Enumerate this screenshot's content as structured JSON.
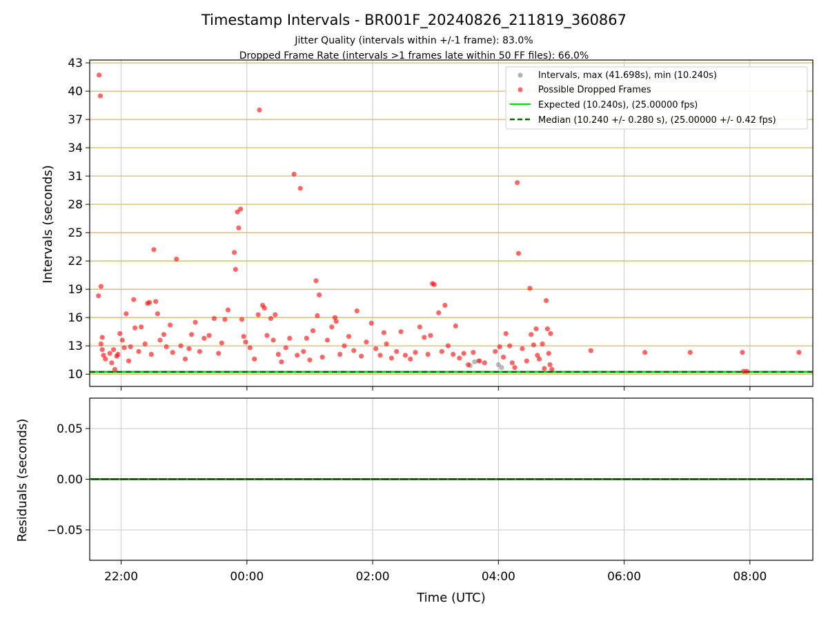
{
  "figure": {
    "title": "Timestamp Intervals - BR001F_20240826_211819_360867",
    "subtitle_1": "Jitter Quality (intervals within +/-1 frame): 83.0%",
    "subtitle_2": "Dropped Frame Rate (intervals >1 frames late within 50 FF files): 66.0%"
  },
  "colors": {
    "intervals": "#808080",
    "dropped": "#ff0000",
    "expected": "#00e000",
    "median": "#006400",
    "hband": "#d4b86a",
    "grid": "#c8c8c8"
  },
  "chart_data": [
    {
      "type": "scatter",
      "xlabel": "Time (UTC)",
      "ylabel": "Intervals (seconds)",
      "x_unit": "hours since 00:00 UTC",
      "xlim": [
        -2.5,
        9.0
      ],
      "ylim": [
        8.7,
        43.3
      ],
      "x_ticks": [
        {
          "value": -2,
          "label": "22:00"
        },
        {
          "value": 0,
          "label": "00:00"
        },
        {
          "value": 2,
          "label": "02:00"
        },
        {
          "value": 4,
          "label": "04:00"
        },
        {
          "value": 6,
          "label": "06:00"
        },
        {
          "value": 8,
          "label": "08:00"
        }
      ],
      "y_ticks": [
        10,
        13,
        16,
        19,
        22,
        25,
        28,
        31,
        34,
        37,
        40,
        43
      ],
      "horizontal_bands": [
        10,
        13,
        16,
        19,
        22,
        25,
        28,
        31,
        34,
        37,
        40,
        43
      ],
      "legend": {
        "position": "upper right",
        "entries": [
          {
            "label": "Intervals, max (41.698s), min (10.240s)",
            "kind": "dot",
            "color": "#808080"
          },
          {
            "label": "Possible Dropped Frames",
            "kind": "dot",
            "color": "#ff0000"
          },
          {
            "label": "Expected (10.240s), (25.00000 fps)",
            "kind": "line",
            "color": "#00e000"
          },
          {
            "label": "Median (10.240 +/- 0.280 s), (25.00000 +/- 0.42 fps)",
            "kind": "dashed",
            "color": "#006400"
          }
        ]
      },
      "lines": [
        {
          "name": "Expected",
          "y": 10.24
        },
        {
          "name": "Median",
          "y": 10.24
        }
      ],
      "series": [
        {
          "name": "Intervals",
          "points": [
            [
              3.62,
              11.3
            ],
            [
              3.68,
              11.4
            ],
            [
              4.0,
              11.0
            ],
            [
              3.55,
              10.9
            ],
            [
              4.05,
              10.7
            ]
          ]
        },
        {
          "name": "Possible Dropped Frames",
          "points": [
            [
              -2.35,
              41.7
            ],
            [
              -2.33,
              39.5
            ],
            [
              -2.36,
              18.3
            ],
            [
              -2.32,
              19.3
            ],
            [
              -2.3,
              13.9
            ],
            [
              -2.32,
              13.2
            ],
            [
              -2.3,
              12.6
            ],
            [
              -2.28,
              12.0
            ],
            [
              -2.25,
              11.6
            ],
            [
              -2.18,
              12.2
            ],
            [
              -2.15,
              11.2
            ],
            [
              -2.12,
              12.6
            ],
            [
              -2.1,
              10.5
            ],
            [
              -2.07,
              11.9
            ],
            [
              -2.05,
              12.1
            ],
            [
              -2.02,
              14.3
            ],
            [
              -1.98,
              13.6
            ],
            [
              -1.95,
              12.8
            ],
            [
              -1.92,
              16.4
            ],
            [
              -1.88,
              11.4
            ],
            [
              -1.85,
              12.9
            ],
            [
              -1.8,
              17.9
            ],
            [
              -1.78,
              14.9
            ],
            [
              -1.72,
              12.4
            ],
            [
              -1.68,
              15.0
            ],
            [
              -1.62,
              13.2
            ],
            [
              -1.58,
              17.5
            ],
            [
              -1.55,
              17.6
            ],
            [
              -1.52,
              12.1
            ],
            [
              -1.48,
              23.2
            ],
            [
              -1.45,
              17.7
            ],
            [
              -1.42,
              16.4
            ],
            [
              -1.38,
              13.6
            ],
            [
              -1.32,
              14.2
            ],
            [
              -1.28,
              12.9
            ],
            [
              -1.22,
              15.2
            ],
            [
              -1.18,
              12.3
            ],
            [
              -1.12,
              22.2
            ],
            [
              -1.05,
              13.0
            ],
            [
              -0.98,
              11.6
            ],
            [
              -0.92,
              12.7
            ],
            [
              -0.88,
              14.2
            ],
            [
              -0.82,
              15.5
            ],
            [
              -0.75,
              12.4
            ],
            [
              -0.68,
              13.8
            ],
            [
              -0.6,
              14.1
            ],
            [
              -0.52,
              15.9
            ],
            [
              -0.45,
              12.2
            ],
            [
              -0.4,
              13.3
            ],
            [
              -0.35,
              15.8
            ],
            [
              -0.3,
              16.8
            ],
            [
              -0.2,
              22.9
            ],
            [
              -0.18,
              21.1
            ],
            [
              -0.15,
              27.2
            ],
            [
              -0.13,
              25.5
            ],
            [
              -0.1,
              27.5
            ],
            [
              -0.08,
              15.8
            ],
            [
              -0.05,
              14.0
            ],
            [
              -0.02,
              13.4
            ],
            [
              0.05,
              12.8
            ],
            [
              0.12,
              11.6
            ],
            [
              0.18,
              16.3
            ],
            [
              0.2,
              38.0
            ],
            [
              0.25,
              17.3
            ],
            [
              0.28,
              17.0
            ],
            [
              0.32,
              14.1
            ],
            [
              0.38,
              15.9
            ],
            [
              0.42,
              13.6
            ],
            [
              0.45,
              16.3
            ],
            [
              0.5,
              12.1
            ],
            [
              0.55,
              11.3
            ],
            [
              0.62,
              12.8
            ],
            [
              0.68,
              13.8
            ],
            [
              0.75,
              31.2
            ],
            [
              0.8,
              12.0
            ],
            [
              0.85,
              29.7
            ],
            [
              0.9,
              12.4
            ],
            [
              0.95,
              13.8
            ],
            [
              1.0,
              11.5
            ],
            [
              1.05,
              14.6
            ],
            [
              1.1,
              19.9
            ],
            [
              1.12,
              16.2
            ],
            [
              1.15,
              18.4
            ],
            [
              1.2,
              11.8
            ],
            [
              1.28,
              13.6
            ],
            [
              1.35,
              15.0
            ],
            [
              1.4,
              16.0
            ],
            [
              1.42,
              15.6
            ],
            [
              1.48,
              12.1
            ],
            [
              1.55,
              13.0
            ],
            [
              1.62,
              14.0
            ],
            [
              1.7,
              12.5
            ],
            [
              1.75,
              16.7
            ],
            [
              1.82,
              11.9
            ],
            [
              1.9,
              13.4
            ],
            [
              1.98,
              15.4
            ],
            [
              2.05,
              12.7
            ],
            [
              2.12,
              12.0
            ],
            [
              2.18,
              14.4
            ],
            [
              2.22,
              13.2
            ],
            [
              2.3,
              11.7
            ],
            [
              2.38,
              12.4
            ],
            [
              2.45,
              14.5
            ],
            [
              2.52,
              12.0
            ],
            [
              2.6,
              11.6
            ],
            [
              2.68,
              12.3
            ],
            [
              2.75,
              15.0
            ],
            [
              2.82,
              13.9
            ],
            [
              2.88,
              12.1
            ],
            [
              2.92,
              14.1
            ],
            [
              2.95,
              19.6
            ],
            [
              2.98,
              19.5
            ],
            [
              3.05,
              16.5
            ],
            [
              3.1,
              12.4
            ],
            [
              3.15,
              17.3
            ],
            [
              3.2,
              13.0
            ],
            [
              3.28,
              12.1
            ],
            [
              3.32,
              15.1
            ],
            [
              3.38,
              11.7
            ],
            [
              3.45,
              12.2
            ],
            [
              3.52,
              11.0
            ],
            [
              3.6,
              12.3
            ],
            [
              3.7,
              11.4
            ],
            [
              3.78,
              11.2
            ],
            [
              3.95,
              12.4
            ],
            [
              4.02,
              12.9
            ],
            [
              4.08,
              11.8
            ],
            [
              4.12,
              14.3
            ],
            [
              4.18,
              13.0
            ],
            [
              4.22,
              11.2
            ],
            [
              4.26,
              10.7
            ],
            [
              4.3,
              30.3
            ],
            [
              4.32,
              22.8
            ],
            [
              4.38,
              12.7
            ],
            [
              4.45,
              11.4
            ],
            [
              4.5,
              19.1
            ],
            [
              4.52,
              14.2
            ],
            [
              4.56,
              13.1
            ],
            [
              4.6,
              14.8
            ],
            [
              4.62,
              12.0
            ],
            [
              4.65,
              11.6
            ],
            [
              4.7,
              13.2
            ],
            [
              4.73,
              10.6
            ],
            [
              4.76,
              17.8
            ],
            [
              4.78,
              14.8
            ],
            [
              4.8,
              12.2
            ],
            [
              4.82,
              11.0
            ],
            [
              4.83,
              14.3
            ],
            [
              4.85,
              10.5
            ],
            [
              5.47,
              12.5
            ],
            [
              6.33,
              12.3
            ],
            [
              7.05,
              12.3
            ],
            [
              7.88,
              12.3
            ],
            [
              7.9,
              10.3
            ],
            [
              7.95,
              10.3
            ],
            [
              8.78,
              12.3
            ]
          ]
        }
      ]
    },
    {
      "type": "line",
      "xlabel": "Time (UTC)",
      "ylabel": "Residuals (seconds)",
      "xlim": [
        -2.5,
        9.0
      ],
      "ylim": [
        -0.08,
        0.08
      ],
      "x_ticks": [
        {
          "value": -2,
          "label": "22:00"
        },
        {
          "value": 0,
          "label": "00:00"
        },
        {
          "value": 2,
          "label": "02:00"
        },
        {
          "value": 4,
          "label": "04:00"
        },
        {
          "value": 6,
          "label": "06:00"
        },
        {
          "value": 8,
          "label": "08:00"
        }
      ],
      "y_ticks": [
        {
          "value": 0.05,
          "label": "0.05"
        },
        {
          "value": 0.0,
          "label": "0.00"
        },
        {
          "value": -0.05,
          "label": "−0.05"
        }
      ],
      "series": [
        {
          "name": "Residuals",
          "y": 0.0
        }
      ]
    }
  ]
}
